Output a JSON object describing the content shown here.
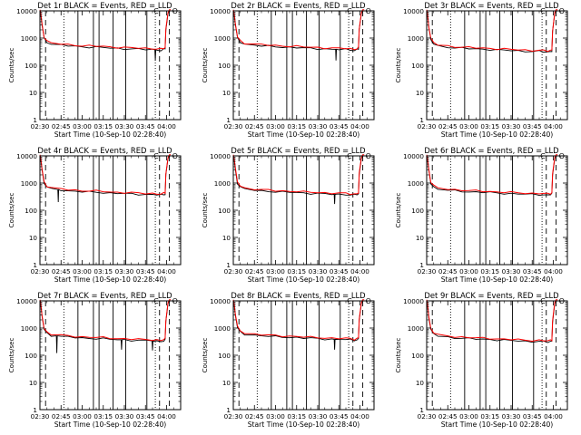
{
  "figure": {
    "panel_titles": [
      "Det 1r BLACK = Events, RED = LLD",
      "Det 2r BLACK = Events, RED = LLD",
      "Det 3r BLACK = Events, RED = LLD",
      "Det 4r BLACK = Events, RED = LLD",
      "Det 5r BLACK = Events, RED = LLD",
      "Det 6r BLACK = Events, RED = LLD",
      "Det 7r BLACK = Events, RED = LLD",
      "Det 8r BLACK = Events, RED = LLD",
      "Det 9r BLACK = Events, RED = LLD"
    ],
    "xlabel": "Start Time (10-Sep-10 02:28:40)",
    "ylabel": "Counts/sec",
    "x_tick_labels": [
      "02:30",
      "02:45",
      "03:00",
      "03:15",
      "03:30",
      "03:45",
      "04:00"
    ],
    "y_tick_labels": [
      "1",
      "10",
      "100",
      "1000",
      "10000"
    ],
    "colors": {
      "events": "#000000",
      "lld": "#ff0000",
      "axes": "#000000"
    }
  },
  "chart_data": {
    "type": "line",
    "layout": "3x3 grid of panels",
    "xlim_minutes": [
      0,
      100
    ],
    "x_ticks_minutes": [
      0,
      15,
      30,
      45,
      60,
      75,
      90
    ],
    "ylim": [
      1,
      10000
    ],
    "y_scale": "log",
    "grid": false,
    "legend": "in title",
    "series": [
      {
        "name": "BLACK = Events",
        "color": "#000000"
      },
      {
        "name": "RED = LLD",
        "color": "#ff0000"
      }
    ],
    "profile": {
      "x": [
        0,
        0.5,
        1.5,
        3,
        5,
        8,
        15,
        20,
        25,
        30,
        35,
        40,
        45,
        50,
        55,
        60,
        65,
        70,
        75,
        80,
        83,
        86,
        88,
        89,
        89.5,
        91,
        92,
        93
      ],
      "y": [
        10000,
        8000,
        3000,
        1000,
        720,
        600,
        550,
        520,
        500,
        480,
        470,
        460,
        450,
        430,
        420,
        410,
        400,
        390,
        380,
        380,
        370,
        360,
        380,
        400,
        2000,
        8000,
        10000,
        10000
      ]
    },
    "panels": [
      {
        "detector": "1r",
        "level_factor": 1.0,
        "events_dips": [
          {
            "x": 82,
            "y": 150
          }
        ]
      },
      {
        "detector": "2r",
        "level_factor": 1.0,
        "events_dips": [
          {
            "x": 73,
            "y": 150
          }
        ]
      },
      {
        "detector": "3r",
        "level_factor": 0.85,
        "events_dips": []
      },
      {
        "detector": "4r",
        "level_factor": 1.0,
        "events_dips": [
          {
            "x": 13,
            "y": 200
          }
        ]
      },
      {
        "detector": "5r",
        "level_factor": 1.0,
        "events_dips": [
          {
            "x": 72,
            "y": 170
          }
        ]
      },
      {
        "detector": "6r",
        "level_factor": 1.0,
        "events_dips": []
      },
      {
        "detector": "7r",
        "level_factor": 0.9,
        "events_dips": [
          {
            "x": 12,
            "y": 120
          },
          {
            "x": 58,
            "y": 160
          },
          {
            "x": 80,
            "y": 150
          }
        ]
      },
      {
        "detector": "8r",
        "level_factor": 1.0,
        "events_dips": [
          {
            "x": 72,
            "y": 160
          }
        ]
      },
      {
        "detector": "9r",
        "level_factor": 0.85,
        "events_dips": []
      }
    ],
    "markers": {
      "solid": [
        27,
        38,
        42,
        52,
        61,
        76
      ],
      "dotted": [
        17,
        82
      ],
      "dashed": [
        4,
        85,
        92
      ]
    },
    "annotations": [
      {
        "text": "C",
        "x": 82.5,
        "y": 8000
      },
      {
        "text": "O",
        "x": 96,
        "y": 8000
      }
    ]
  }
}
